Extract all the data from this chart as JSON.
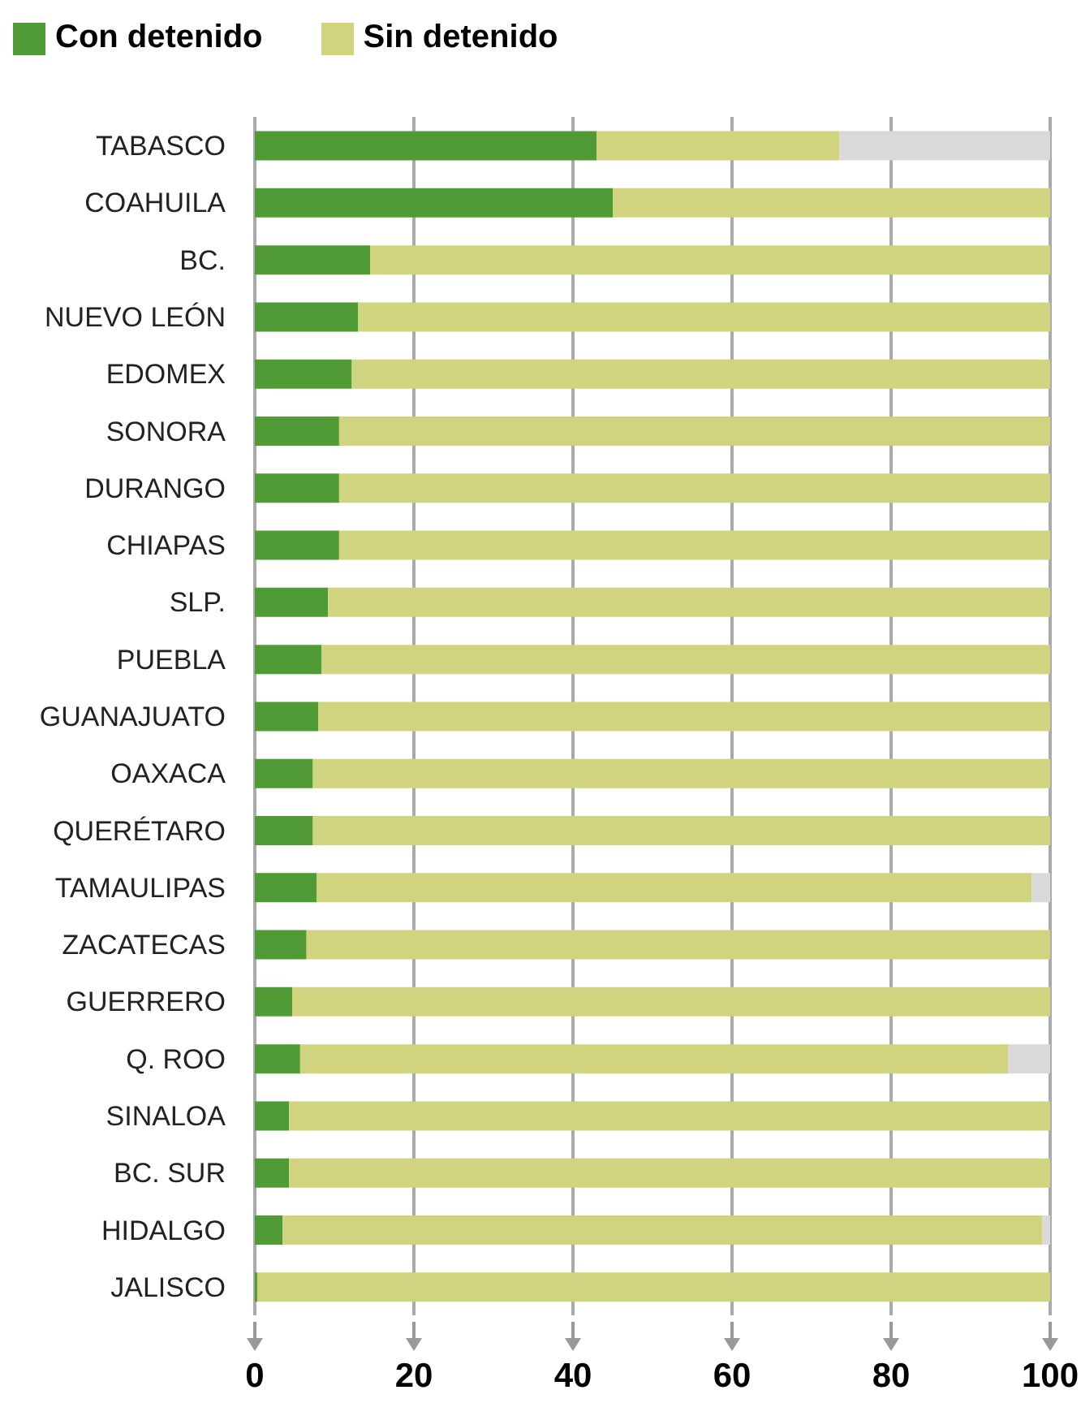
{
  "chart_data": {
    "type": "bar",
    "orientation": "horizontal",
    "stacked": true,
    "categories": [
      "TABASCO",
      "COAHUILA",
      "BC.",
      "NUEVO LEÓN",
      "EDOMEX",
      "SONORA",
      "DURANGO",
      "CHIAPAS",
      "SLP.",
      "PUEBLA",
      "GUANAJUATO",
      "OAXACA",
      "QUERÉTARO",
      "TAMAULIPAS",
      "ZACATECAS",
      "GUERRERO",
      "Q. ROO",
      "SINALOA",
      "BC. SUR",
      "HIDALGO",
      "JALISCO"
    ],
    "series": [
      {
        "name": "Con detenido",
        "color": "#509b35",
        "values": [
          43,
          45,
          14.5,
          13,
          12.2,
          10.6,
          10.6,
          10.6,
          9.2,
          8.4,
          8,
          7.3,
          7.3,
          7.8,
          6.5,
          4.7,
          5.7,
          4.3,
          4.3,
          3.5,
          0.3
        ]
      },
      {
        "name": "Sin detenido",
        "color": "#d0d47e",
        "values": [
          30.5,
          55,
          85.5,
          87,
          87.8,
          89.4,
          89.4,
          89.4,
          90.8,
          91.6,
          92,
          92.7,
          92.7,
          89.9,
          93.5,
          95.3,
          89,
          95.7,
          95.7,
          95.5,
          99.7
        ]
      },
      {
        "color": "#d9d9d9",
        "values": [
          26.5,
          0,
          0,
          0,
          0,
          0,
          0,
          0,
          0,
          0,
          0,
          0,
          0,
          2.3,
          0,
          0,
          5.3,
          0,
          0,
          1,
          0
        ]
      }
    ],
    "xlim": [
      0,
      100
    ],
    "xticks": [
      0,
      20,
      40,
      60,
      80,
      100
    ],
    "grid": "x",
    "legend": "top left"
  }
}
